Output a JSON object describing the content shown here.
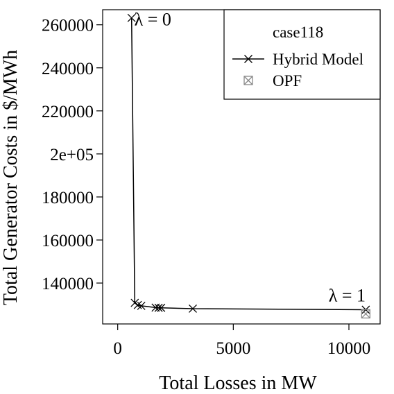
{
  "chart_data": {
    "type": "line",
    "title": "",
    "xlabel": "Total Losses in MW",
    "ylabel": "Total Generator Costs in $/MWh",
    "xlim": [
      -650,
      11350
    ],
    "ylim": [
      121000,
      267000
    ],
    "x_ticks": [
      {
        "value": 0,
        "label": "0"
      },
      {
        "value": 5000,
        "label": "5000"
      },
      {
        "value": 10000,
        "label": "10000"
      }
    ],
    "y_ticks": [
      {
        "value": 140000,
        "label": "140000"
      },
      {
        "value": 160000,
        "label": "160000"
      },
      {
        "value": 180000,
        "label": "180000"
      },
      {
        "value": 200000,
        "label": "2e+05"
      },
      {
        "value": 220000,
        "label": "220000"
      },
      {
        "value": 240000,
        "label": "240000"
      },
      {
        "value": 260000,
        "label": "260000"
      }
    ],
    "grid": false,
    "legend": {
      "position": "top-right",
      "title": "case118",
      "entries": [
        {
          "label": "Hybrid Model",
          "marker": "x-line"
        },
        {
          "label": "OPF",
          "marker": "boxed-x"
        }
      ]
    },
    "series": [
      {
        "name": "Hybrid Model",
        "marker": "x",
        "color": "#000000",
        "points": [
          {
            "x": 600,
            "y": 263200
          },
          {
            "x": 740,
            "y": 130800
          },
          {
            "x": 870,
            "y": 129800
          },
          {
            "x": 1020,
            "y": 129400
          },
          {
            "x": 1640,
            "y": 128600
          },
          {
            "x": 1770,
            "y": 128500
          },
          {
            "x": 1880,
            "y": 128500
          },
          {
            "x": 3250,
            "y": 128100
          },
          {
            "x": 10730,
            "y": 127600
          }
        ]
      },
      {
        "name": "OPF",
        "marker": "boxed-x",
        "color": "#888888",
        "points": [
          {
            "x": 10730,
            "y": 125700
          }
        ]
      }
    ],
    "annotations": [
      {
        "text": "λ = 0",
        "x": 720,
        "y": 259700,
        "anchor": "start"
      },
      {
        "text": "λ = 1",
        "x": 10720,
        "y": 131400,
        "anchor": "end"
      }
    ]
  }
}
